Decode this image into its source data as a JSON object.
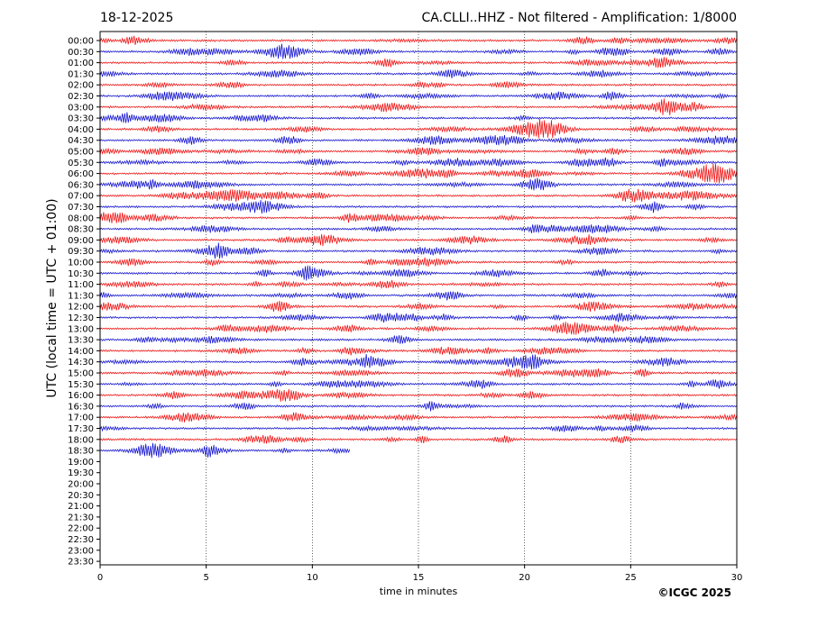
{
  "header": {
    "date": "18-12-2025",
    "title": "CA.CLLI..HHZ - Not filtered - Amplification: 1/8000"
  },
  "footer": {
    "copyright": "©ICGC 2025"
  },
  "colors": {
    "odd_trace": "#ee0000",
    "even_trace": "#0000cc",
    "axis": "#000000"
  },
  "chart_data": {
    "type": "line",
    "title": "CA.CLLI..HHZ - Not filtered - Amplification: 1/8000",
    "xlabel": "time in minutes",
    "ylabel": "UTC (local time = UTC + 01:00)",
    "xlim": [
      0,
      30
    ],
    "xticks": [
      0,
      5,
      10,
      15,
      20,
      25,
      30
    ],
    "grid": "vertical dotted lines at x ticks",
    "rows": [
      "00:00",
      "00:30",
      "01:00",
      "01:30",
      "02:00",
      "02:30",
      "03:00",
      "03:30",
      "04:00",
      "04:30",
      "05:00",
      "05:30",
      "06:00",
      "06:30",
      "07:00",
      "07:30",
      "08:00",
      "08:30",
      "09:00",
      "09:30",
      "10:00",
      "10:30",
      "11:00",
      "11:30",
      "12:00",
      "12:30",
      "13:00",
      "13:30",
      "14:00",
      "14:30",
      "15:00",
      "15:30",
      "16:00",
      "16:30",
      "17:00",
      "17:30",
      "18:00",
      "18:30",
      "19:00",
      "19:30",
      "20:00",
      "20:30",
      "21:00",
      "21:30",
      "22:00",
      "22:30",
      "23:00",
      "23:30"
    ],
    "data_end": {
      "row": "18:30",
      "minutes": 11.8
    },
    "trace_colors": [
      "red",
      "blue"
    ]
  }
}
